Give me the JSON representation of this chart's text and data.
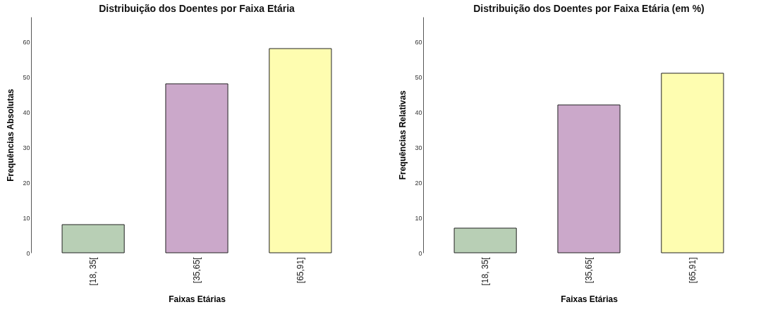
{
  "chart_data": [
    {
      "type": "bar",
      "title": "Distribuição dos Doentes por Faixa Etária",
      "xlabel": "Faixas Etárias",
      "ylabel": "Frequências Absolutas",
      "categories": [
        "[18, 35[",
        "[35,65[",
        "[65,91]"
      ],
      "values": [
        8,
        48,
        58
      ],
      "colors": [
        "#b8cfb5",
        "#cba8ca",
        "#fefdb0"
      ],
      "ylim": [
        0,
        67
      ],
      "yticks": [
        0,
        10,
        20,
        30,
        40,
        50,
        60
      ],
      "grid": false
    },
    {
      "type": "bar",
      "title": "Distribuição dos Doentes por Faixa Etária (em %)",
      "xlabel": "Faixas Etárias",
      "ylabel": "Frequências Relativas",
      "categories": [
        "[18, 35[",
        "[35,65[",
        "[65,91]"
      ],
      "values": [
        7,
        42,
        51
      ],
      "colors": [
        "#b8cfb5",
        "#cba8ca",
        "#fefdb0"
      ],
      "ylim": [
        0,
        67
      ],
      "yticks": [
        0,
        10,
        20,
        30,
        40,
        50,
        60
      ],
      "grid": false
    }
  ]
}
